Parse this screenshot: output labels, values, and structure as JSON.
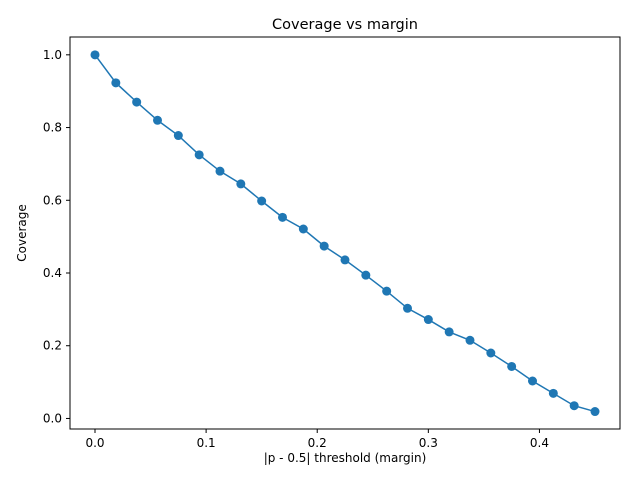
{
  "chart_data": {
    "type": "line",
    "title": "Coverage vs margin",
    "xlabel": "|p - 0.5| threshold (margin)",
    "ylabel": "Coverage",
    "xlim": [
      -0.0225,
      0.4725
    ],
    "ylim": [
      -0.029,
      1.049
    ],
    "xticks": [
      0.0,
      0.1,
      0.2,
      0.3,
      0.4
    ],
    "xtick_labels": [
      "0.0",
      "0.1",
      "0.2",
      "0.3",
      "0.4"
    ],
    "yticks": [
      0.0,
      0.2,
      0.4,
      0.6,
      0.8,
      1.0
    ],
    "ytick_labels": [
      "0.0",
      "0.2",
      "0.4",
      "0.6",
      "0.8",
      "1.0"
    ],
    "grid": false,
    "color": "#1f77b4",
    "series": [
      {
        "x": [
          0.0,
          0.01875,
          0.0375,
          0.05625,
          0.075,
          0.09375,
          0.1125,
          0.13125,
          0.15,
          0.16875,
          0.1875,
          0.20625,
          0.225,
          0.24375,
          0.2625,
          0.28125,
          0.3,
          0.31875,
          0.3375,
          0.35625,
          0.375,
          0.39375,
          0.4125,
          0.43125,
          0.45
        ],
        "y": [
          1.0,
          0.923,
          0.87,
          0.82,
          0.778,
          0.725,
          0.68,
          0.645,
          0.598,
          0.553,
          0.521,
          0.474,
          0.436,
          0.394,
          0.35,
          0.303,
          0.272,
          0.238,
          0.215,
          0.18,
          0.143,
          0.103,
          0.069,
          0.035,
          0.019
        ]
      }
    ]
  }
}
